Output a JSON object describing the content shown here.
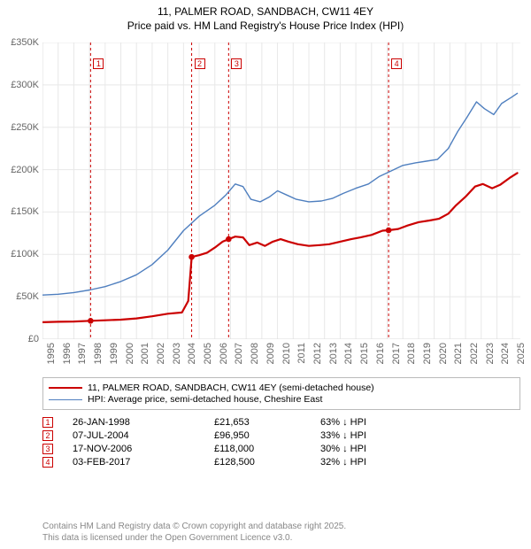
{
  "title": {
    "line1": "11, PALMER ROAD, SANDBACH, CW11 4EY",
    "line2": "Price paid vs. HM Land Registry's House Price Index (HPI)"
  },
  "chart": {
    "type": "line",
    "xlim": [
      1995,
      2025.5
    ],
    "ylim": [
      0,
      350000
    ],
    "ytick_step": 50000,
    "ytick_labels": [
      "£0",
      "£50K",
      "£100K",
      "£150K",
      "£200K",
      "£250K",
      "£300K",
      "£350K"
    ],
    "xtick_years": [
      1995,
      1996,
      1997,
      1998,
      1999,
      2000,
      2001,
      2002,
      2003,
      2004,
      2005,
      2006,
      2007,
      2008,
      2009,
      2010,
      2011,
      2012,
      2013,
      2014,
      2015,
      2016,
      2017,
      2018,
      2019,
      2020,
      2021,
      2022,
      2023,
      2024,
      2025
    ],
    "grid_color": "#e8e8e8",
    "axis_color": "#dddddd",
    "background_color": "#ffffff",
    "series": {
      "property": {
        "color": "#cb0000",
        "line_width": 2.2,
        "label": "11, PALMER ROAD, SANDBACH, CW11 4EY (semi-detached house)",
        "points": [
          [
            1995.0,
            20000
          ],
          [
            1996.0,
            20500
          ],
          [
            1997.0,
            20800
          ],
          [
            1998.07,
            21653
          ],
          [
            1999.0,
            22300
          ],
          [
            2000.0,
            23000
          ],
          [
            2001.0,
            24500
          ],
          [
            2002.0,
            27000
          ],
          [
            2003.0,
            30000
          ],
          [
            2003.9,
            31500
          ],
          [
            2004.3,
            45000
          ],
          [
            2004.52,
            96950
          ],
          [
            2005.0,
            99000
          ],
          [
            2005.5,
            102000
          ],
          [
            2006.0,
            108000
          ],
          [
            2006.5,
            115000
          ],
          [
            2006.88,
            118000
          ],
          [
            2007.3,
            121000
          ],
          [
            2007.8,
            120000
          ],
          [
            2008.2,
            111000
          ],
          [
            2008.7,
            114000
          ],
          [
            2009.2,
            110000
          ],
          [
            2009.7,
            115000
          ],
          [
            2010.2,
            118000
          ],
          [
            2010.7,
            115000
          ],
          [
            2011.3,
            112000
          ],
          [
            2012.0,
            110000
          ],
          [
            2012.7,
            111000
          ],
          [
            2013.3,
            112000
          ],
          [
            2014.0,
            115000
          ],
          [
            2014.7,
            118000
          ],
          [
            2015.3,
            120000
          ],
          [
            2016.0,
            123000
          ],
          [
            2016.7,
            128000
          ],
          [
            2017.09,
            128500
          ],
          [
            2017.7,
            130000
          ],
          [
            2018.3,
            134000
          ],
          [
            2019.0,
            138000
          ],
          [
            2019.7,
            140000
          ],
          [
            2020.3,
            142000
          ],
          [
            2020.9,
            148000
          ],
          [
            2021.4,
            158000
          ],
          [
            2022.0,
            168000
          ],
          [
            2022.6,
            180000
          ],
          [
            2023.1,
            183000
          ],
          [
            2023.7,
            178000
          ],
          [
            2024.2,
            182000
          ],
          [
            2024.8,
            190000
          ],
          [
            2025.3,
            196000
          ]
        ]
      },
      "hpi": {
        "color": "#4f7fbf",
        "line_width": 1.4,
        "label": "HPI: Average price, semi-detached house, Cheshire East",
        "points": [
          [
            1995.0,
            52000
          ],
          [
            1996.0,
            53000
          ],
          [
            1997.0,
            55000
          ],
          [
            1998.0,
            58000
          ],
          [
            1999.0,
            62000
          ],
          [
            2000.0,
            68000
          ],
          [
            2001.0,
            76000
          ],
          [
            2002.0,
            88000
          ],
          [
            2003.0,
            105000
          ],
          [
            2004.0,
            128000
          ],
          [
            2005.0,
            145000
          ],
          [
            2006.0,
            158000
          ],
          [
            2006.7,
            170000
          ],
          [
            2007.3,
            183000
          ],
          [
            2007.8,
            180000
          ],
          [
            2008.3,
            165000
          ],
          [
            2008.9,
            162000
          ],
          [
            2009.5,
            168000
          ],
          [
            2010.0,
            175000
          ],
          [
            2010.6,
            170000
          ],
          [
            2011.2,
            165000
          ],
          [
            2012.0,
            162000
          ],
          [
            2012.8,
            163000
          ],
          [
            2013.5,
            166000
          ],
          [
            2014.2,
            172000
          ],
          [
            2015.0,
            178000
          ],
          [
            2015.8,
            183000
          ],
          [
            2016.5,
            192000
          ],
          [
            2017.2,
            198000
          ],
          [
            2018.0,
            205000
          ],
          [
            2018.8,
            208000
          ],
          [
            2019.5,
            210000
          ],
          [
            2020.2,
            212000
          ],
          [
            2020.9,
            225000
          ],
          [
            2021.5,
            245000
          ],
          [
            2022.1,
            262000
          ],
          [
            2022.7,
            280000
          ],
          [
            2023.2,
            272000
          ],
          [
            2023.8,
            265000
          ],
          [
            2024.3,
            278000
          ],
          [
            2024.9,
            285000
          ],
          [
            2025.3,
            290000
          ]
        ]
      }
    },
    "transactions_markers": [
      {
        "n": "1",
        "year": 1998.07,
        "value": 21653
      },
      {
        "n": "2",
        "year": 2004.52,
        "value": 96950
      },
      {
        "n": "3",
        "year": 2006.88,
        "value": 118000
      },
      {
        "n": "4",
        "year": 2017.09,
        "value": 128500
      }
    ],
    "marker_line_color": "#cb0000",
    "marker_line_dash": "3,3",
    "marker_point_color": "#cb0000"
  },
  "legend": {
    "border_color": "#bbbbbb"
  },
  "transactions_table": {
    "rows": [
      {
        "n": "1",
        "date": "26-JAN-1998",
        "price": "£21,653",
        "delta": "63% ↓ HPI"
      },
      {
        "n": "2",
        "date": "07-JUL-2004",
        "price": "£96,950",
        "delta": "33% ↓ HPI"
      },
      {
        "n": "3",
        "date": "17-NOV-2006",
        "price": "£118,000",
        "delta": "30% ↓ HPI"
      },
      {
        "n": "4",
        "date": "03-FEB-2017",
        "price": "£128,500",
        "delta": "32% ↓ HPI"
      }
    ],
    "marker_border": "#cb0000",
    "marker_text": "#cb0000"
  },
  "footer": {
    "line1": "Contains HM Land Registry data © Crown copyright and database right 2025.",
    "line2": "This data is licensed under the Open Government Licence v3.0."
  }
}
